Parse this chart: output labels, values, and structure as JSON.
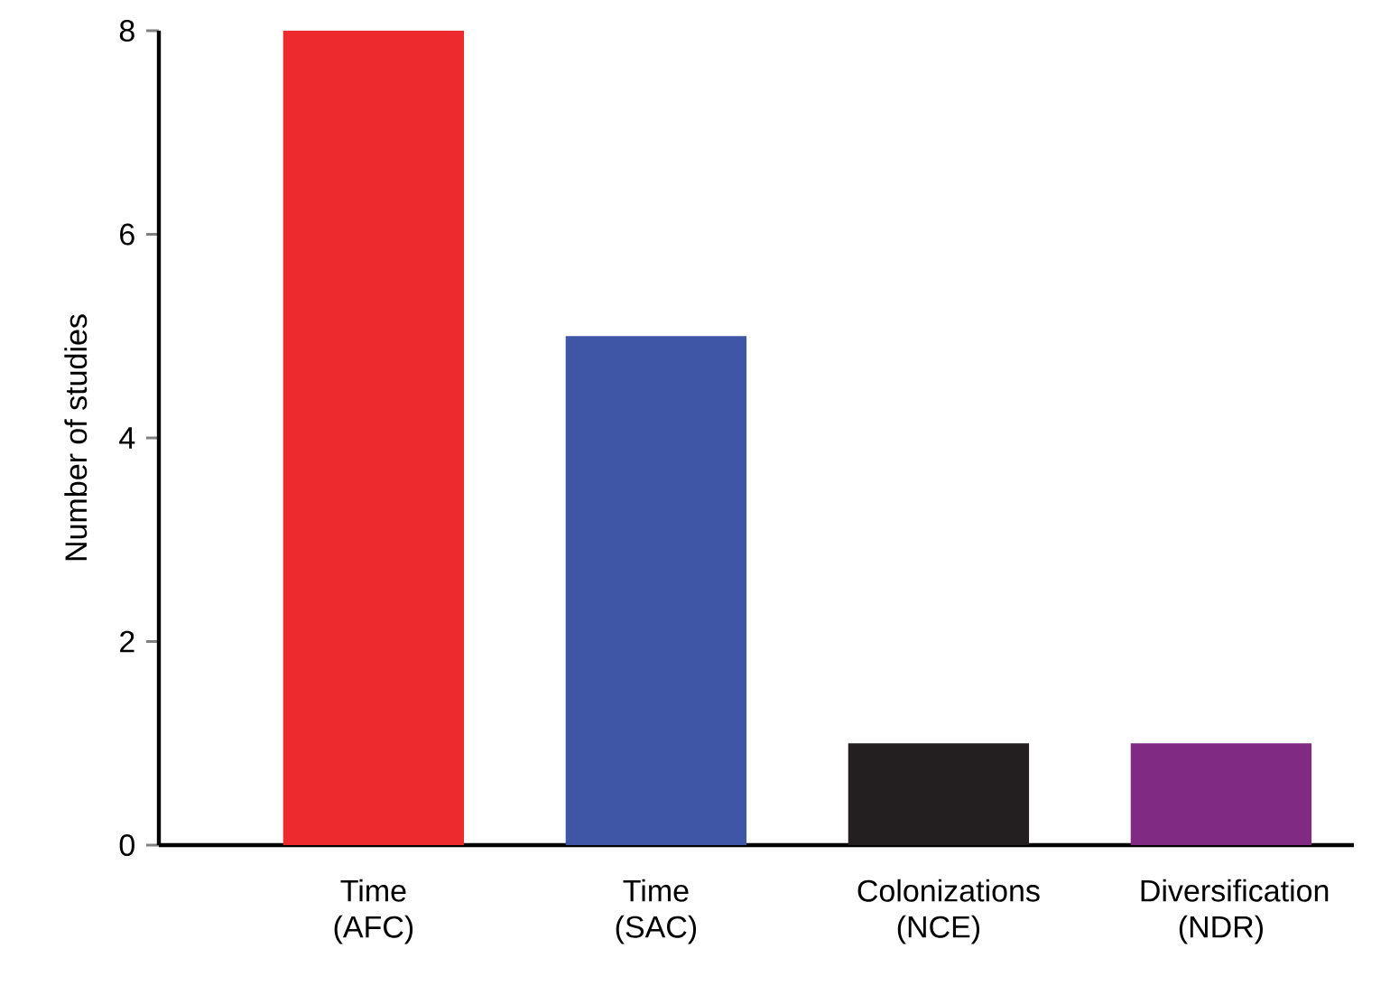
{
  "chart_data": {
    "type": "bar",
    "ylabel": "Number of studies",
    "categories": [
      "Time (AFC)",
      "Time (SAC)",
      "Colonizations (NCE)",
      "Diversification (NDR)"
    ],
    "values": [
      8,
      5,
      1,
      1
    ],
    "colors": [
      "#ed2a2e",
      "#3f55a5",
      "#231f20",
      "#812a84"
    ],
    "ylim": [
      0,
      8
    ],
    "yticks": [
      0,
      2,
      4,
      6,
      8
    ]
  }
}
